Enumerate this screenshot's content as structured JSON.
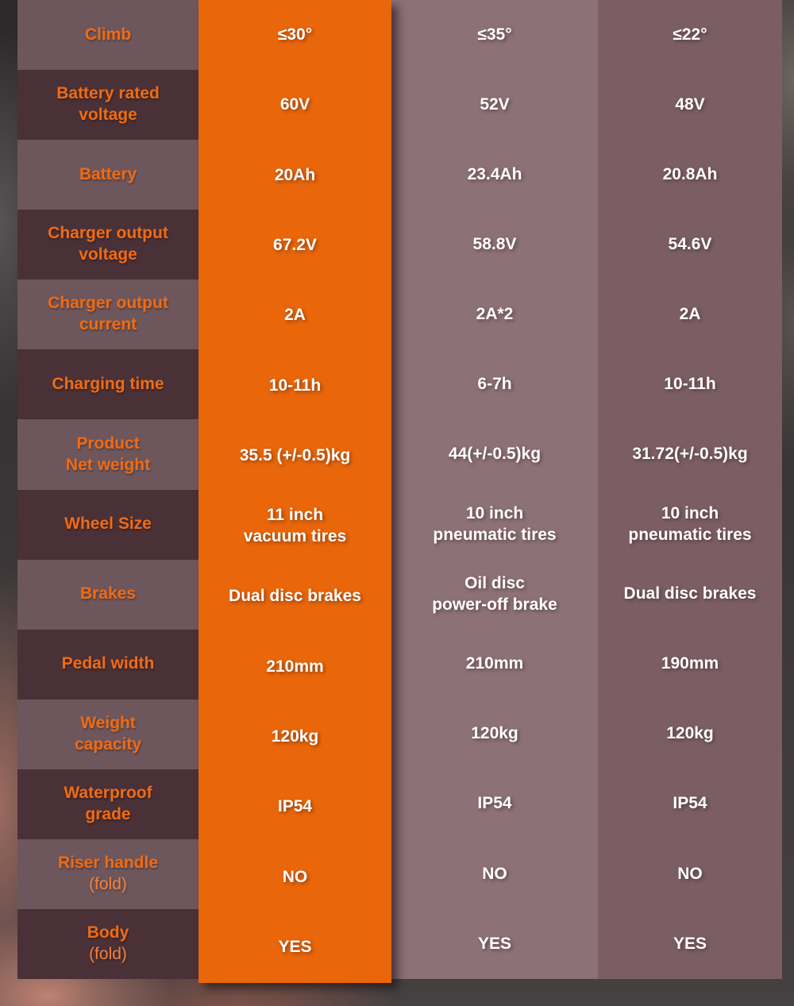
{
  "chart_data": {
    "type": "table",
    "title": "",
    "rows": [
      {
        "label": "Climb",
        "sublabel": "",
        "values": [
          "≤30°",
          "≤35°",
          "≤22°"
        ]
      },
      {
        "label": "Battery rated\nvoltage",
        "sublabel": "",
        "values": [
          "60V",
          "52V",
          "48V"
        ]
      },
      {
        "label": "Battery",
        "sublabel": "",
        "values": [
          "20Ah",
          "23.4Ah",
          "20.8Ah"
        ]
      },
      {
        "label": "Charger output\nvoltage",
        "sublabel": "",
        "values": [
          "67.2V",
          "58.8V",
          "54.6V"
        ]
      },
      {
        "label": "Charger output\ncurrent",
        "sublabel": "",
        "values": [
          "2A",
          "2A*2",
          "2A"
        ]
      },
      {
        "label": "Charging time",
        "sublabel": "",
        "values": [
          "10-11h",
          "6-7h",
          "10-11h"
        ]
      },
      {
        "label": "Product\nNet weight",
        "sublabel": "",
        "values": [
          "35.5 (+/-0.5)kg",
          "44(+/-0.5)kg",
          "31.72(+/-0.5)kg"
        ]
      },
      {
        "label": "Wheel Size",
        "sublabel": "",
        "values": [
          "11 inch\nvacuum tires",
          "10 inch\npneumatic tires",
          "10 inch\npneumatic tires"
        ]
      },
      {
        "label": "Brakes",
        "sublabel": "",
        "values": [
          "Dual disc brakes",
          "Oil disc\npower-off brake",
          "Dual disc brakes"
        ]
      },
      {
        "label": "Pedal width",
        "sublabel": "",
        "values": [
          "210mm",
          "210mm",
          "190mm"
        ]
      },
      {
        "label": "Weight\ncapacity",
        "sublabel": "",
        "values": [
          "120kg",
          "120kg",
          "120kg"
        ]
      },
      {
        "label": "Waterproof\ngrade",
        "sublabel": "",
        "values": [
          "IP54",
          "IP54",
          "IP54"
        ]
      },
      {
        "label": "Riser handle",
        "sublabel": "(fold)",
        "values": [
          "NO",
          "NO",
          "NO"
        ]
      },
      {
        "label": "Body",
        "sublabel": "(fold)",
        "values": [
          "YES",
          "YES",
          "YES"
        ]
      }
    ]
  },
  "colors": {
    "accent_orange_column": "#e9660a",
    "label_text_orange": "#f16b12",
    "label_sub_orange": "#f1823d",
    "label_row_light": "#6d565c",
    "label_row_dark": "#4a3037",
    "column_b_bg": "#8c7177",
    "column_c_bg": "#7a5e63",
    "value_text": "#ffffff"
  }
}
